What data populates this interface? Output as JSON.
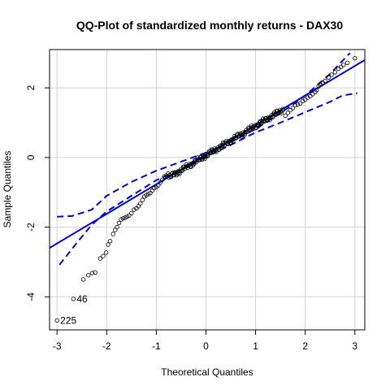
{
  "chart_data": {
    "type": "scatter",
    "title": "QQ-Plot of standardized monthly returns - DAX30",
    "xlabel": "Theoretical Quantiles",
    "ylabel": "Sample Quantiles",
    "xlim": [
      -3.15,
      3.2
    ],
    "ylim": [
      -4.95,
      3.1
    ],
    "x_ticks": [
      -3,
      -2,
      -1,
      0,
      1,
      2,
      3
    ],
    "y_ticks": [
      -4,
      -2,
      0,
      2
    ],
    "grid": true,
    "colors": {
      "points": "#000000",
      "line": "#0000CD",
      "grid": "#D3D3D3"
    },
    "point_labels": [
      {
        "text": "225",
        "x": -3.0,
        "y": -4.68
      },
      {
        "text": "46",
        "x": -2.67,
        "y": -4.06
      }
    ],
    "tail_points": [
      [
        -3.0,
        -4.68
      ],
      [
        -2.67,
        -4.06
      ],
      [
        -2.47,
        -3.5
      ],
      [
        -2.37,
        -3.38
      ],
      [
        -2.29,
        -3.32
      ],
      [
        -2.23,
        -3.3
      ],
      [
        -2.13,
        -2.9
      ],
      [
        -2.07,
        -2.83
      ],
      [
        -2.01,
        -2.73
      ],
      [
        -1.97,
        -2.5
      ],
      [
        -1.93,
        -2.4
      ],
      [
        -1.87,
        -2.2
      ],
      [
        -1.83,
        -2.08
      ],
      [
        -1.79,
        -2.0
      ],
      [
        -1.75,
        -1.88
      ],
      [
        -1.71,
        -1.78
      ],
      [
        -1.67,
        -1.75
      ],
      [
        -1.63,
        -1.73
      ],
      [
        -1.59,
        -1.7
      ],
      [
        -1.55,
        -1.67
      ],
      [
        -1.5,
        -1.6
      ],
      [
        -1.45,
        -1.5
      ],
      [
        -1.4,
        -1.46
      ],
      [
        -1.36,
        -1.4
      ],
      [
        -1.32,
        -1.32
      ],
      [
        -1.28,
        -1.22
      ],
      [
        -1.24,
        -1.12
      ],
      [
        -1.2,
        -1.08
      ],
      [
        -1.16,
        -1.05
      ],
      [
        -1.12,
        -1.02
      ],
      [
        -1.08,
        -0.95
      ],
      [
        -1.04,
        -0.88
      ],
      [
        -1.0,
        -0.85
      ],
      [
        -0.96,
        -0.8
      ],
      [
        -0.92,
        -0.72
      ],
      [
        -0.88,
        -0.64
      ],
      [
        -0.84,
        -0.55
      ],
      [
        -0.8,
        -0.52
      ],
      [
        -0.76,
        -0.46
      ],
      [
        1.6,
        1.2
      ],
      [
        1.65,
        1.28
      ],
      [
        1.7,
        1.36
      ],
      [
        1.75,
        1.42
      ],
      [
        1.8,
        1.5
      ],
      [
        1.85,
        1.52
      ],
      [
        1.9,
        1.55
      ],
      [
        1.95,
        1.62
      ],
      [
        2.0,
        1.66
      ],
      [
        2.05,
        1.72
      ],
      [
        2.1,
        1.76
      ],
      [
        2.15,
        1.82
      ],
      [
        2.2,
        1.88
      ],
      [
        2.23,
        1.94
      ],
      [
        2.27,
        2.05
      ],
      [
        2.3,
        2.1
      ],
      [
        2.35,
        2.15
      ],
      [
        2.4,
        2.2
      ],
      [
        2.47,
        2.3
      ],
      [
        2.53,
        2.38
      ],
      [
        2.6,
        2.45
      ],
      [
        2.67,
        2.55
      ],
      [
        2.72,
        2.6
      ],
      [
        2.77,
        2.66
      ],
      [
        2.85,
        2.72
      ],
      [
        3.0,
        2.85
      ]
    ],
    "body_quantile_range": [
      -0.75,
      1.55
    ],
    "fit_line": {
      "intercept": 0.08,
      "slope": 0.85
    },
    "confidence_band": {
      "upper": [
        [
          -3.0,
          -1.7
        ],
        [
          -2.7,
          -1.68
        ],
        [
          -2.3,
          -1.5
        ],
        [
          -2.0,
          -1.1
        ],
        [
          -1.5,
          -0.7
        ],
        [
          -1.0,
          -0.38
        ],
        [
          0.0,
          0.14
        ],
        [
          0.5,
          0.45
        ],
        [
          1.0,
          0.82
        ],
        [
          1.5,
          1.27
        ],
        [
          2.0,
          1.78
        ],
        [
          2.5,
          2.4
        ],
        [
          2.9,
          3.0
        ]
      ],
      "lower": [
        [
          -2.95,
          -3.08
        ],
        [
          -2.6,
          -2.45
        ],
        [
          -2.3,
          -1.93
        ],
        [
          -2.0,
          -1.55
        ],
        [
          -1.5,
          -1.1
        ],
        [
          -1.0,
          -0.65
        ],
        [
          -0.5,
          -0.34
        ],
        [
          0.0,
          0.02
        ],
        [
          0.5,
          0.36
        ],
        [
          1.0,
          0.72
        ],
        [
          1.5,
          1.0
        ],
        [
          2.0,
          1.3
        ],
        [
          2.5,
          1.6
        ],
        [
          2.75,
          1.78
        ],
        [
          3.05,
          1.85
        ]
      ]
    }
  }
}
